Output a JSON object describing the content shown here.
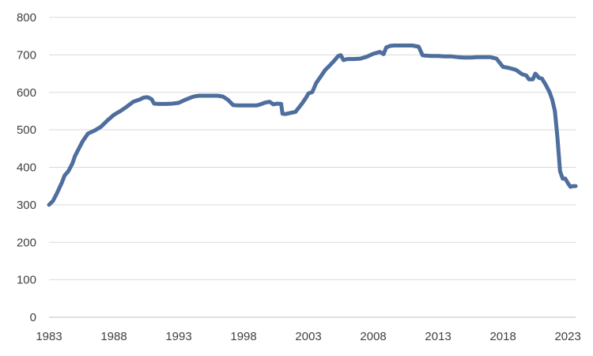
{
  "chart_data": {
    "type": "line",
    "title": "",
    "xlabel": "",
    "ylabel": "",
    "xlim": [
      1983,
      2023.6
    ],
    "ylim": [
      0,
      800
    ],
    "grid": "horizontal",
    "legend": "none",
    "line_color": "#4e6e9e",
    "x_ticks": [
      "1983",
      "1988",
      "1993",
      "1998",
      "2003",
      "2008",
      "2013",
      "2018",
      "2023"
    ],
    "y_ticks": [
      "0",
      "100",
      "200",
      "300",
      "400",
      "500",
      "600",
      "700",
      "800"
    ],
    "series": [
      {
        "x": [
          1983.0,
          1983.3,
          1983.6,
          1984.0,
          1984.2,
          1984.5,
          1984.8,
          1985.0,
          1985.3,
          1985.6,
          1986.0,
          1986.5,
          1987.0,
          1987.5,
          1988.0,
          1988.5,
          1989.0,
          1989.5,
          1990.0,
          1990.3,
          1990.6,
          1990.9,
          1991.1,
          1991.5,
          1992.0,
          1992.5,
          1993.0,
          1993.5,
          1994.0,
          1994.3,
          1994.6,
          1995.0,
          1995.5,
          1996.0,
          1996.4,
          1996.8,
          1997.2,
          1997.6,
          1998.0,
          1998.5,
          1999.0,
          1999.3,
          1999.6,
          2000.0,
          2000.3,
          2000.6,
          2000.9,
          2001.0,
          2001.2,
          2001.6,
          2002.0,
          2002.5,
          2002.8,
          2003.0,
          2003.3,
          2003.6,
          2004.0,
          2004.3,
          2004.6,
          2005.0,
          2005.3,
          2005.5,
          2005.7,
          2006.0,
          2006.5,
          2007.0,
          2007.5,
          2008.0,
          2008.5,
          2008.8,
          2009.0,
          2009.3,
          2009.6,
          2010.0,
          2010.5,
          2011.0,
          2011.5,
          2011.8,
          2012.0,
          2012.5,
          2013.0,
          2013.5,
          2014.0,
          2014.5,
          2015.0,
          2015.5,
          2016.0,
          2016.5,
          2017.0,
          2017.5,
          2018.0,
          2018.5,
          2019.0,
          2019.5,
          2019.8,
          2020.0,
          2020.3,
          2020.5,
          2020.8,
          2021.0,
          2021.3,
          2021.6,
          2021.8,
          2022.0,
          2022.2,
          2022.4,
          2022.6,
          2022.8,
          2023.0,
          2023.2,
          2023.4,
          2023.6
        ],
        "y": [
          300,
          310,
          330,
          360,
          378,
          390,
          410,
          430,
          450,
          470,
          490,
          498,
          508,
          525,
          540,
          550,
          562,
          575,
          581,
          586,
          587,
          582,
          570,
          569,
          569,
          570,
          572,
          580,
          587,
          590,
          591,
          591,
          591,
          591,
          589,
          580,
          566,
          565,
          565,
          565,
          565,
          568,
          572,
          575,
          568,
          570,
          569,
          543,
          542,
          545,
          548,
          570,
          585,
          597,
          601,
          625,
          645,
          660,
          670,
          685,
          697,
          699,
          686,
          689,
          689,
          690,
          695,
          703,
          708,
          702,
          720,
          724,
          725,
          725,
          725,
          725,
          722,
          699,
          698,
          697,
          697,
          696,
          696,
          694,
          693,
          693,
          694,
          694,
          694,
          690,
          668,
          665,
          660,
          648,
          645,
          635,
          635,
          650,
          638,
          637,
          620,
          600,
          580,
          550,
          480,
          390,
          370,
          370,
          358,
          348,
          350,
          350
        ]
      }
    ]
  }
}
